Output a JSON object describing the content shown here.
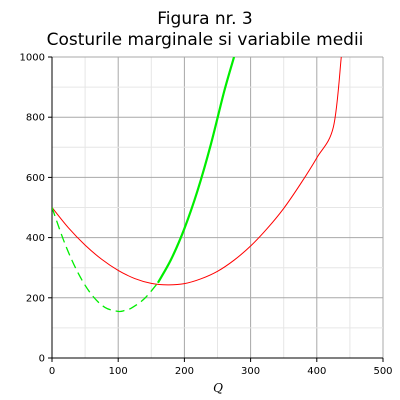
{
  "chart_data": {
    "type": "line",
    "title": "Figura nr. 3",
    "subtitle": "Costurile marginale si variabile medii",
    "xlabel": "Q",
    "ylabel": "",
    "xlim": [
      0,
      500
    ],
    "ylim": [
      0,
      1000
    ],
    "x_ticks": [
      "0",
      "100",
      "200",
      "300",
      "400",
      "500"
    ],
    "y_ticks": [
      "0",
      "200",
      "400",
      "600",
      "800",
      "1000"
    ],
    "grid": true,
    "legend": "none",
    "series": [
      {
        "color": "#ff0000",
        "style": "solid",
        "x": [
          0,
          25,
          50,
          75,
          100,
          125,
          150,
          175,
          200,
          225,
          250,
          275,
          300,
          325,
          350,
          375,
          400,
          425,
          437
        ],
        "y": [
          500,
          432,
          375,
          328,
          291,
          264,
          248,
          243,
          247,
          263,
          288,
          325,
          372,
          430,
          497,
          577,
          665,
          767,
          1000
        ]
      },
      {
        "color": "#00ee00",
        "style": "dashed",
        "x": [
          0,
          20,
          40,
          60,
          80,
          100,
          110,
          120,
          140,
          160
        ],
        "y": [
          500,
          377,
          280,
          210,
          168,
          155,
          158,
          166,
          198,
          250
        ]
      },
      {
        "color": "#00ee00",
        "style": "solid",
        "x": [
          160,
          180,
          200,
          220,
          240,
          260,
          275
        ],
        "y": [
          250,
          328,
          430,
          557,
          710,
          885,
          1000
        ]
      }
    ]
  }
}
